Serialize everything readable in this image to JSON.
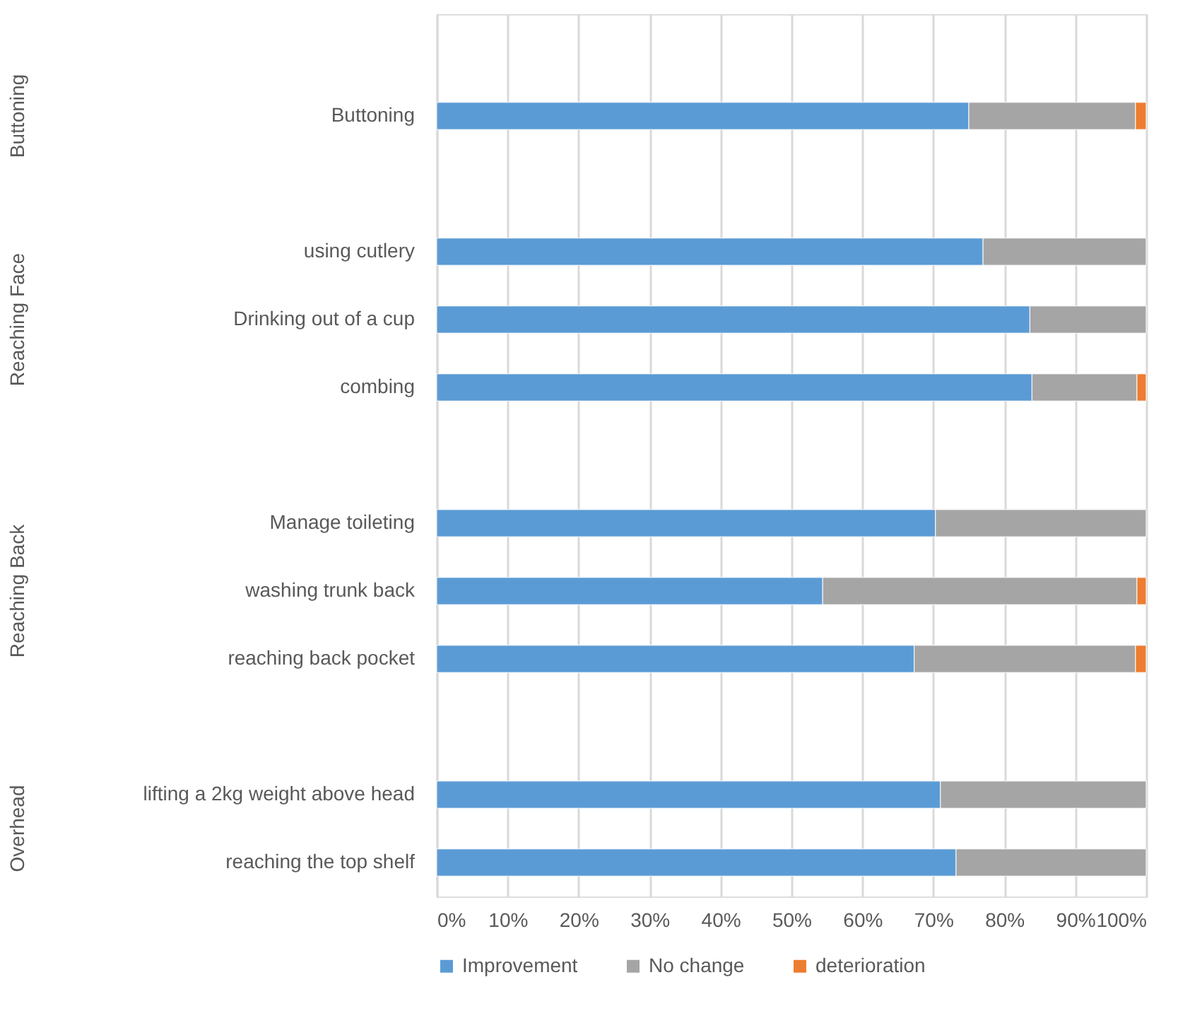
{
  "chart_data": {
    "type": "bar",
    "orientation": "horizontal",
    "stacked": true,
    "categories": [
      null,
      "Buttoning",
      null,
      "using cutlery",
      "Drinking out of a cup",
      "combing",
      null,
      "Manage toileting",
      "washing trunk back",
      "reaching back pocket",
      null,
      "lifting a 2kg weight above head",
      "reaching the top shelf"
    ],
    "series": [
      {
        "name": "Improvement",
        "color": "#5b9bd5",
        "values": [
          null,
          75.0,
          null,
          77.0,
          83.6,
          83.9,
          null,
          70.3,
          54.4,
          67.3,
          null,
          71.0,
          73.2
        ]
      },
      {
        "name": "No change",
        "color": "#a5a5a5",
        "values": [
          null,
          23.5,
          null,
          23.0,
          16.4,
          14.8,
          null,
          29.7,
          44.3,
          31.2,
          null,
          29.0,
          26.8
        ]
      },
      {
        "name": "deterioration",
        "color": "#ed7d31",
        "values": [
          null,
          1.5,
          null,
          null,
          null,
          1.3,
          null,
          null,
          1.3,
          1.5,
          null,
          null,
          null
        ]
      }
    ],
    "xlim": [
      0,
      100
    ],
    "xticks": [
      {
        "value": 0,
        "label": "0%"
      },
      {
        "value": 10,
        "label": "10%"
      },
      {
        "value": 20,
        "label": "20%"
      },
      {
        "value": 30,
        "label": "30%"
      },
      {
        "value": 40,
        "label": "40%"
      },
      {
        "value": 50,
        "label": "50%"
      },
      {
        "value": 60,
        "label": "60%"
      },
      {
        "value": 70,
        "label": "70%"
      },
      {
        "value": 80,
        "label": "80%"
      },
      {
        "value": 90,
        "label": "90%"
      },
      {
        "value": 100,
        "label": "100%"
      }
    ],
    "annotations": [
      "Buttoning",
      "Reaching Face",
      "Reaching Back",
      "Overhead"
    ],
    "grid": "x",
    "legend": "bottom"
  }
}
